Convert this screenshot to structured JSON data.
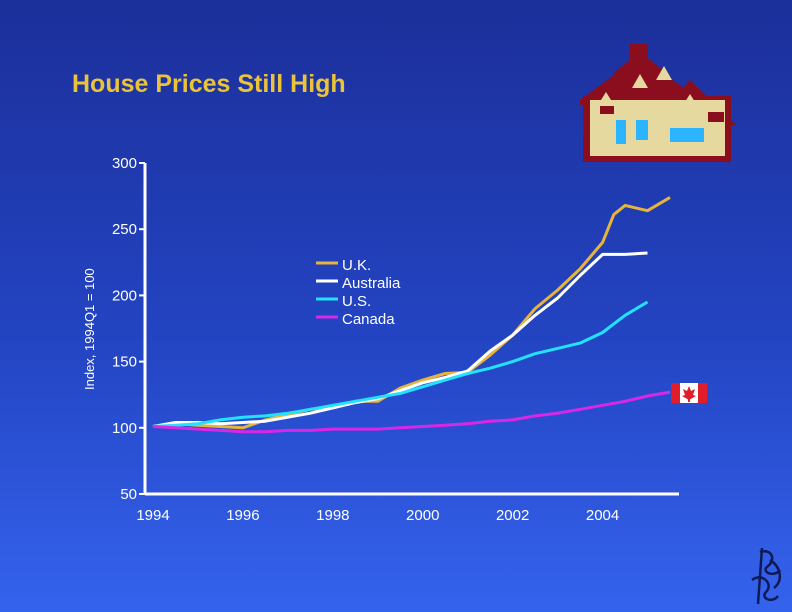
{
  "slide": {
    "title": "House Prices Still High"
  },
  "colors": {
    "background": "#2a4bd0",
    "title": "#e9c33a",
    "axis": "#ffffff"
  },
  "icons": [
    "house-icon",
    "canada-flag-icon",
    "logo-icon"
  ],
  "chart_data": {
    "type": "line",
    "ylabel": "Index, 1994Q1 = 100",
    "ylim": [
      50,
      300
    ],
    "yticks": [
      300,
      250,
      200,
      150,
      100,
      50
    ],
    "xlim": [
      1994,
      2005.7
    ],
    "xticks": [
      "1994",
      "1996",
      "1998",
      "2000",
      "2002",
      "2004"
    ],
    "legend_position": "center",
    "series": [
      {
        "name": "U.K.",
        "color": "#e6b43c",
        "x": [
          1994.0,
          1994.5,
          1995.0,
          1995.5,
          1996.0,
          1996.5,
          1997.0,
          1997.5,
          1998.0,
          1998.5,
          1999.0,
          1999.5,
          2000.0,
          2000.5,
          2001.0,
          2001.5,
          2002.0,
          2002.5,
          2003.0,
          2003.5,
          2004.0,
          2004.25,
          2004.5,
          2005.0,
          2005.5
        ],
        "y": [
          101,
          103,
          102,
          101,
          100,
          106,
          110,
          114,
          115,
          120,
          120,
          130,
          136,
          141,
          142,
          155,
          170,
          190,
          204,
          220,
          240,
          261,
          268,
          264,
          274
        ]
      },
      {
        "name": "Australia",
        "color": "#ffffff",
        "x": [
          1994.0,
          1994.5,
          1995.0,
          1995.5,
          1996.0,
          1996.5,
          1997.0,
          1997.5,
          1998.0,
          1998.5,
          1999.0,
          1999.5,
          2000.0,
          2000.5,
          2001.0,
          2001.5,
          2002.0,
          2002.5,
          2003.0,
          2003.5,
          2004.0,
          2004.5,
          2005.0
        ],
        "y": [
          101,
          104,
          104,
          103,
          104,
          105,
          108,
          111,
          115,
          119,
          122,
          128,
          134,
          138,
          143,
          158,
          170,
          185,
          198,
          215,
          231,
          231,
          232
        ]
      },
      {
        "name": "U.S.",
        "color": "#22e2ff",
        "x": [
          1994.0,
          1994.5,
          1995.0,
          1995.5,
          1996.0,
          1996.5,
          1997.0,
          1997.5,
          1998.0,
          1998.5,
          1999.0,
          1999.5,
          2000.0,
          2000.5,
          2001.0,
          2001.5,
          2002.0,
          2002.5,
          2003.0,
          2003.5,
          2004.0,
          2004.5,
          2005.0
        ],
        "y": [
          101,
          102,
          103,
          106,
          108,
          109,
          111,
          114,
          117,
          120,
          123,
          126,
          131,
          136,
          141,
          145,
          150,
          156,
          160,
          164,
          172,
          185,
          195
        ]
      },
      {
        "name": "Canada",
        "color": "#d828e6",
        "x": [
          1994.0,
          1994.5,
          1995.0,
          1995.5,
          1996.0,
          1996.5,
          1997.0,
          1997.5,
          1998.0,
          1998.5,
          1999.0,
          1999.5,
          2000.0,
          2000.5,
          2001.0,
          2001.5,
          2002.0,
          2002.5,
          2003.0,
          2003.5,
          2004.0,
          2004.5,
          2005.0,
          2005.5
        ],
        "y": [
          101,
          100,
          99,
          98,
          97,
          97,
          98,
          98,
          99,
          99,
          99,
          100,
          101,
          102,
          103,
          105,
          106,
          109,
          111,
          114,
          117,
          120,
          124,
          127
        ]
      }
    ]
  }
}
